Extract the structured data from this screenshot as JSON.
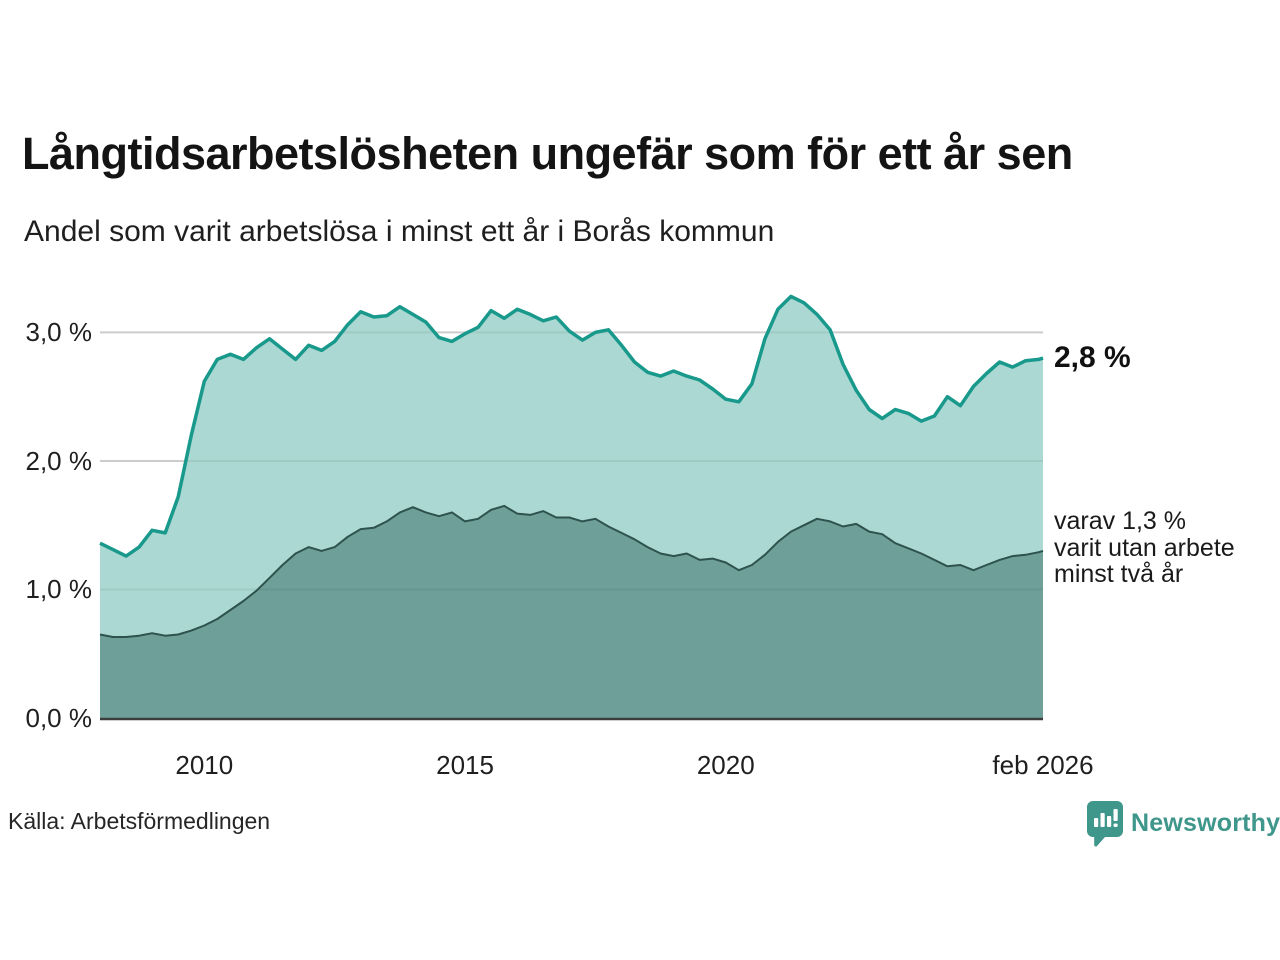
{
  "header": {
    "title": "Långtidsarbetslösheten ungefär som för ett år sen",
    "subtitle": "Andel som varit arbetslösa i minst ett år i Borås kommun"
  },
  "chart_data": {
    "type": "area",
    "title": "Långtidsarbetslösheten ungefär som för ett år sen",
    "subtitle": "Andel som varit arbetslösa i minst ett år i Borås kommun",
    "xlabel": "",
    "ylabel": "",
    "xlim": [
      2008.0,
      2026.083
    ],
    "ylim": [
      0,
      3.4
    ],
    "grid": "horizontal",
    "legend": "none",
    "colors": {
      "line_1yr": "#18998b",
      "fill_1yr": "#abd8d2",
      "line_2yr": "#2e524e",
      "fill_2yr": "#6f9f99",
      "gridline": "#d9d9d9",
      "axis": "#3d3d3d",
      "brand_teal": "#3f968b"
    },
    "x": [
      2008.0,
      2008.25,
      2008.5,
      2008.75,
      2009.0,
      2009.25,
      2009.5,
      2009.75,
      2010.0,
      2010.25,
      2010.5,
      2010.75,
      2011.0,
      2011.25,
      2011.5,
      2011.75,
      2012.0,
      2012.25,
      2012.5,
      2012.75,
      2013.0,
      2013.25,
      2013.5,
      2013.75,
      2014.0,
      2014.25,
      2014.5,
      2014.75,
      2015.0,
      2015.25,
      2015.5,
      2015.75,
      2016.0,
      2016.25,
      2016.5,
      2016.75,
      2017.0,
      2017.25,
      2017.5,
      2017.75,
      2018.0,
      2018.25,
      2018.5,
      2018.75,
      2019.0,
      2019.25,
      2019.5,
      2019.75,
      2020.0,
      2020.25,
      2020.5,
      2020.75,
      2021.0,
      2021.25,
      2021.5,
      2021.75,
      2022.0,
      2022.25,
      2022.5,
      2022.75,
      2023.0,
      2023.25,
      2023.5,
      2023.75,
      2024.0,
      2024.25,
      2024.5,
      2024.75,
      2025.0,
      2025.25,
      2025.5,
      2025.75,
      2026.0,
      2026.083
    ],
    "series": [
      {
        "name": "minst ett år",
        "end_value": "2,8 %",
        "values": [
          1.36,
          1.31,
          1.26,
          1.33,
          1.46,
          1.44,
          1.72,
          2.2,
          2.62,
          2.79,
          2.83,
          2.79,
          2.88,
          2.95,
          2.87,
          2.79,
          2.9,
          2.86,
          2.93,
          3.06,
          3.16,
          3.12,
          3.13,
          3.2,
          3.14,
          3.08,
          2.96,
          2.93,
          2.99,
          3.04,
          3.17,
          3.11,
          3.18,
          3.14,
          3.09,
          3.12,
          3.01,
          2.94,
          3.0,
          3.02,
          2.9,
          2.77,
          2.69,
          2.66,
          2.7,
          2.66,
          2.63,
          2.56,
          2.48,
          2.46,
          2.6,
          2.95,
          3.18,
          3.28,
          3.23,
          3.14,
          3.02,
          2.75,
          2.55,
          2.4,
          2.33,
          2.4,
          2.37,
          2.31,
          2.35,
          2.5,
          2.43,
          2.58,
          2.68,
          2.77,
          2.73,
          2.78,
          2.79,
          2.8
        ]
      },
      {
        "name": "minst två år",
        "end_value": "1,3 %",
        "values": [
          0.65,
          0.63,
          0.63,
          0.64,
          0.66,
          0.64,
          0.65,
          0.68,
          0.72,
          0.77,
          0.84,
          0.91,
          0.99,
          1.09,
          1.19,
          1.28,
          1.33,
          1.3,
          1.33,
          1.41,
          1.47,
          1.48,
          1.53,
          1.6,
          1.64,
          1.6,
          1.57,
          1.6,
          1.53,
          1.55,
          1.62,
          1.65,
          1.59,
          1.58,
          1.61,
          1.56,
          1.56,
          1.53,
          1.55,
          1.49,
          1.44,
          1.39,
          1.33,
          1.28,
          1.26,
          1.28,
          1.23,
          1.24,
          1.21,
          1.15,
          1.19,
          1.27,
          1.37,
          1.45,
          1.5,
          1.55,
          1.53,
          1.49,
          1.51,
          1.45,
          1.43,
          1.36,
          1.32,
          1.28,
          1.23,
          1.18,
          1.19,
          1.15,
          1.19,
          1.23,
          1.26,
          1.27,
          1.29,
          1.3
        ]
      }
    ],
    "y_ticks": [
      {
        "label": "3,0 %",
        "value": 3
      },
      {
        "label": "2,0 %",
        "value": 2
      },
      {
        "label": "1,0 %",
        "value": 1
      },
      {
        "label": "0,0 %",
        "value": 0
      }
    ],
    "x_ticks": [
      {
        "label": "2010",
        "year": 2010
      },
      {
        "label": "2015",
        "year": 2015
      },
      {
        "label": "2020",
        "year": 2020
      },
      {
        "label": "feb 2026",
        "year": 2026.083
      }
    ],
    "annotations": {
      "end_value_label": "2,8 %",
      "detail_lines": [
        "varav 1,3 %",
        "varit utan arbete",
        "minst två år"
      ]
    }
  },
  "footer": {
    "source": "Källa: Arbetsförmedlingen",
    "brand_name": "Newsworthy"
  }
}
